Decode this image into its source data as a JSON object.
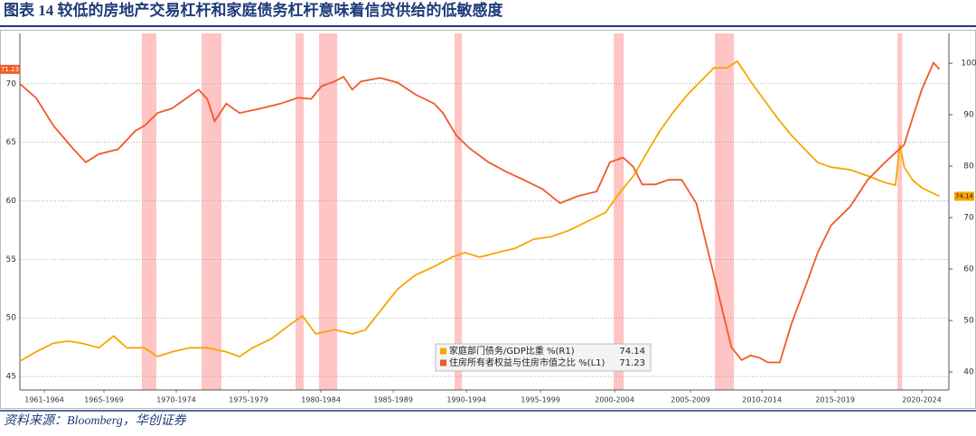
{
  "chart_data": {
    "type": "line",
    "title": "图表 14 较低的房地产交易杠杆和家庭债务杠杆意味着信贷供给的低敏感度",
    "source": "资料来源：Bloomberg，华创证券",
    "xlim": [
      1961.5,
      2024.95
    ],
    "xticks": [
      {
        "value": 1963.17,
        "label": "1961-1964"
      },
      {
        "value": 1967.24,
        "label": "1965-1969"
      },
      {
        "value": 1972.18,
        "label": "1970-1974"
      },
      {
        "value": 1977.12,
        "label": "1975-1979"
      },
      {
        "value": 1982.06,
        "label": "1980-1984"
      },
      {
        "value": 1987.0,
        "label": "1985-1989"
      },
      {
        "value": 1992.0,
        "label": "1990-1994"
      },
      {
        "value": 1997.06,
        "label": "1995-1999"
      },
      {
        "value": 2002.12,
        "label": "2000-2004"
      },
      {
        "value": 2007.3,
        "label": "2005-2009"
      },
      {
        "value": 2012.18,
        "label": "2010-2014"
      },
      {
        "value": 2017.18,
        "label": "2015-2019"
      },
      {
        "value": 2023.1,
        "label": "2020-2024"
      }
    ],
    "ylim": [
      43.85,
      74.3
    ],
    "yticks": [
      45,
      50,
      55,
      60,
      65,
      70
    ],
    "y2lim": [
      36.5,
      105.8
    ],
    "y2ticks": [
      40,
      50,
      60,
      70,
      80,
      90,
      100
    ],
    "grid": true,
    "recessions": [
      [
        1969.83,
        1970.82
      ],
      [
        1973.91,
        1975.27
      ],
      [
        1980.33,
        1980.88
      ],
      [
        1981.93,
        1983.17
      ],
      [
        1991.19,
        1991.69
      ],
      [
        2002.06,
        2002.74
      ],
      [
        2008.97,
        2010.27
      ],
      [
        2021.44,
        2021.75
      ]
    ],
    "recession_color": "#ff9c9c",
    "series": [
      {
        "name": "家庭部门债务/GDP比重 %(R1)",
        "color": "#f7a600",
        "axis": "y2",
        "x": [
          1961.5,
          1962.6,
          1963.8,
          1964.8,
          1965.7,
          1966.9,
          1967.9,
          1968.8,
          1970.0,
          1970.9,
          1971.9,
          1973.1,
          1974.3,
          1975.6,
          1976.5,
          1977.4,
          1978.7,
          1979.9,
          1980.8,
          1981.7,
          1983.0,
          1984.2,
          1985.1,
          1986.1,
          1987.3,
          1988.5,
          1989.8,
          1991.0,
          1991.9,
          1992.9,
          1994.1,
          1995.3,
          1996.6,
          1997.8,
          1999.0,
          2000.3,
          2001.5,
          2002.4,
          2003.4,
          2004.3,
          2005.2,
          2006.1,
          2007.1,
          2008.0,
          2008.9,
          2009.8,
          2010.5,
          2011.4,
          2012.3,
          2013.2,
          2014.2,
          2015.1,
          2016.0,
          2016.9,
          2018.2,
          2019.4,
          2020.6,
          2021.3,
          2021.6,
          2021.9,
          2022.5,
          2023.1,
          2024.3
        ],
        "values": [
          42.1,
          43.9,
          45.6,
          46,
          45.6,
          44.7,
          47,
          44.7,
          44.7,
          43,
          43.9,
          44.7,
          44.7,
          43.9,
          43,
          44.7,
          46.5,
          49.1,
          50.9,
          47.4,
          48.2,
          47.4,
          48.2,
          51.8,
          56.1,
          58.8,
          60.5,
          62.3,
          63.2,
          62.3,
          63.2,
          64,
          65.8,
          66.3,
          67.5,
          69.3,
          71,
          74.6,
          78.1,
          82.5,
          86.8,
          90.4,
          93.9,
          96.5,
          99.1,
          99.1,
          100.4,
          96.5,
          93,
          89.5,
          86,
          83.3,
          80.7,
          79.8,
          79.3,
          78.1,
          76.8,
          76.3,
          84.2,
          79.8,
          77.2,
          75.8,
          74.14
        ]
      },
      {
        "name": "住房所有者权益与住房市值之比 %(L1)",
        "color": "#f05a28",
        "axis": "y",
        "x": [
          1961.5,
          1962.6,
          1963.8,
          1965.1,
          1966.0,
          1966.9,
          1968.2,
          1969.4,
          1970.0,
          1970.9,
          1971.9,
          1972.8,
          1973.7,
          1974.3,
          1974.8,
          1975.6,
          1976.5,
          1978.0,
          1979.3,
          1980.5,
          1981.4,
          1982.1,
          1983.0,
          1983.6,
          1984.2,
          1984.8,
          1986.1,
          1987.3,
          1988.5,
          1989.8,
          1990.4,
          1991.3,
          1992.2,
          1993.5,
          1994.7,
          1995.9,
          1997.2,
          1998.4,
          1999.6,
          2000.9,
          2001.8,
          2002.7,
          2003.4,
          2004.0,
          2004.9,
          2005.8,
          2006.7,
          2007.7,
          2008.6,
          2009.2,
          2010.1,
          2010.8,
          2011.4,
          2012.0,
          2012.6,
          2013.4,
          2014.2,
          2015.1,
          2016.0,
          2016.9,
          2018.2,
          2019.4,
          2020.6,
          2021.9,
          2022.5,
          2023.1,
          2023.9,
          2024.3
        ],
        "values": [
          70,
          68.8,
          66.4,
          64.5,
          63.3,
          64,
          64.4,
          66,
          66.4,
          67.5,
          67.9,
          68.7,
          69.5,
          68.7,
          66.8,
          68.3,
          67.5,
          67.9,
          68.3,
          68.8,
          68.7,
          69.8,
          70.2,
          70.6,
          69.5,
          70.2,
          70.5,
          70.1,
          69.1,
          68.3,
          67.5,
          65.6,
          64.5,
          63.3,
          62.5,
          61.8,
          61,
          59.8,
          60.4,
          60.8,
          63.3,
          63.7,
          62.9,
          61.4,
          61.4,
          61.8,
          61.8,
          59.8,
          55.2,
          52.1,
          47.5,
          46.4,
          46.8,
          46.6,
          46.2,
          46.2,
          49.5,
          52.5,
          55.6,
          57.9,
          59.5,
          61.8,
          63.3,
          64.8,
          67.2,
          69.5,
          71.8,
          71.23
        ]
      }
    ]
  }
}
